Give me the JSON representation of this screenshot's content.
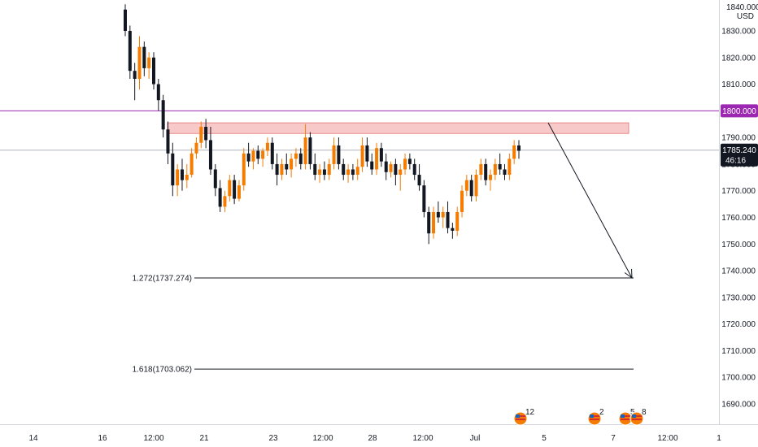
{
  "chart_data": {
    "type": "candlestick",
    "title": "",
    "currency": "USD",
    "top_tick_partial": "1840.000",
    "ylim": [
      1683,
      1842
    ],
    "y_ticks": [
      "1830.000",
      "1820.000",
      "1810.000",
      "1800.000",
      "1790.000",
      "1780.000",
      "1770.000",
      "1760.000",
      "1750.000",
      "1740.000",
      "1730.000",
      "1720.000",
      "1710.000",
      "1700.000",
      "1690.000"
    ],
    "x_ticks": [
      "14",
      "16",
      "12:00",
      "21",
      "23",
      "12:00",
      "28",
      "12:00",
      "Jul",
      "5",
      "7",
      "12:00",
      "1"
    ],
    "current_price": "1785.240",
    "countdown": "46:16",
    "horizontal_level": {
      "price": 1800.0,
      "label": "1800.000",
      "color": "#9c27b0"
    },
    "resistance_zone": {
      "from": 1791.5,
      "to": 1795.5,
      "color": "#f7c9c9"
    },
    "projection_arrow": {
      "from_price": 1795.5,
      "to_price": 1737.3,
      "color": "#131722"
    },
    "fib_levels": [
      {
        "label": "1.272(1737.274)",
        "price": 1737.274
      },
      {
        "label": "1.618(1703.062)",
        "price": 1703.062
      }
    ],
    "event_markers": [
      {
        "label": "12",
        "icon": "us-flag-icon"
      },
      {
        "label": "2",
        "icon": "us-flag-icon"
      },
      {
        "label": "5",
        "icon": "us-flag-icon"
      },
      {
        "label": "8",
        "icon": "us-flag-icon"
      }
    ],
    "up_color": "#f57c00",
    "down_color": "#131722",
    "candles": [
      [
        1838,
        1840,
        1828,
        1830
      ],
      [
        1830,
        1832,
        1812,
        1815
      ],
      [
        1815,
        1818,
        1804,
        1812
      ],
      [
        1812,
        1828,
        1808,
        1824
      ],
      [
        1824,
        1826,
        1813,
        1816
      ],
      [
        1816,
        1822,
        1812,
        1820
      ],
      [
        1820,
        1822,
        1808,
        1810
      ],
      [
        1810,
        1812,
        1800,
        1804
      ],
      [
        1804,
        1806,
        1790,
        1793
      ],
      [
        1793,
        1796,
        1780,
        1784
      ],
      [
        1784,
        1788,
        1768,
        1772
      ],
      [
        1772,
        1780,
        1768,
        1778
      ],
      [
        1778,
        1782,
        1770,
        1774
      ],
      [
        1774,
        1780,
        1771,
        1776
      ],
      [
        1776,
        1786,
        1775,
        1784
      ],
      [
        1784,
        1790,
        1782,
        1788
      ],
      [
        1788,
        1796,
        1786,
        1794
      ],
      [
        1794,
        1797,
        1786,
        1789
      ],
      [
        1789,
        1794,
        1776,
        1778
      ],
      [
        1778,
        1780,
        1768,
        1771
      ],
      [
        1771,
        1774,
        1762,
        1764
      ],
      [
        1764,
        1770,
        1762,
        1768
      ],
      [
        1768,
        1776,
        1766,
        1774
      ],
      [
        1774,
        1776,
        1765,
        1767
      ],
      [
        1767,
        1774,
        1766,
        1772
      ],
      [
        1772,
        1786,
        1770,
        1784
      ],
      [
        1784,
        1788,
        1779,
        1781
      ],
      [
        1781,
        1786,
        1778,
        1785
      ],
      [
        1785,
        1787,
        1780,
        1782
      ],
      [
        1782,
        1786,
        1779,
        1785
      ],
      [
        1785,
        1790,
        1783,
        1788
      ],
      [
        1788,
        1790,
        1778,
        1780
      ],
      [
        1780,
        1784,
        1772,
        1776
      ],
      [
        1776,
        1782,
        1774,
        1780
      ],
      [
        1780,
        1784,
        1776,
        1778
      ],
      [
        1778,
        1784,
        1775,
        1782
      ],
      [
        1782,
        1786,
        1779,
        1784
      ],
      [
        1784,
        1786,
        1778,
        1780
      ],
      [
        1780,
        1795,
        1778,
        1790
      ],
      [
        1790,
        1792,
        1778,
        1780
      ],
      [
        1780,
        1784,
        1774,
        1776
      ],
      [
        1776,
        1780,
        1773,
        1778
      ],
      [
        1778,
        1781,
        1774,
        1776
      ],
      [
        1776,
        1782,
        1774,
        1780
      ],
      [
        1780,
        1790,
        1778,
        1787
      ],
      [
        1787,
        1790,
        1778,
        1780
      ],
      [
        1780,
        1782,
        1774,
        1776
      ],
      [
        1776,
        1780,
        1773,
        1778
      ],
      [
        1778,
        1780,
        1774,
        1776
      ],
      [
        1776,
        1782,
        1774,
        1779
      ],
      [
        1779,
        1790,
        1777,
        1787
      ],
      [
        1787,
        1790,
        1779,
        1781
      ],
      [
        1781,
        1784,
        1776,
        1778
      ],
      [
        1778,
        1788,
        1776,
        1786
      ],
      [
        1786,
        1788,
        1779,
        1781
      ],
      [
        1781,
        1784,
        1774,
        1777
      ],
      [
        1777,
        1781,
        1775,
        1780
      ],
      [
        1780,
        1782,
        1772,
        1776
      ],
      [
        1776,
        1780,
        1770,
        1778
      ],
      [
        1778,
        1784,
        1776,
        1782
      ],
      [
        1782,
        1784,
        1778,
        1780
      ],
      [
        1780,
        1782,
        1774,
        1776
      ],
      [
        1776,
        1780,
        1770,
        1772
      ],
      [
        1772,
        1774,
        1760,
        1762
      ],
      [
        1762,
        1764,
        1750,
        1754
      ],
      [
        1754,
        1764,
        1752,
        1762
      ],
      [
        1762,
        1766,
        1758,
        1760
      ],
      [
        1760,
        1764,
        1756,
        1762
      ],
      [
        1762,
        1766,
        1754,
        1756
      ],
      [
        1756,
        1758,
        1752,
        1755
      ],
      [
        1755,
        1764,
        1753,
        1762
      ],
      [
        1762,
        1772,
        1760,
        1770
      ],
      [
        1770,
        1776,
        1768,
        1774
      ],
      [
        1774,
        1776,
        1766,
        1768
      ],
      [
        1768,
        1778,
        1766,
        1776
      ],
      [
        1776,
        1782,
        1774,
        1780
      ],
      [
        1780,
        1782,
        1772,
        1774
      ],
      [
        1774,
        1778,
        1770,
        1776
      ],
      [
        1776,
        1782,
        1774,
        1780
      ],
      [
        1780,
        1784,
        1776,
        1778
      ],
      [
        1778,
        1780,
        1774,
        1776
      ],
      [
        1776,
        1784,
        1774,
        1782
      ],
      [
        1782,
        1789,
        1780,
        1787
      ],
      [
        1787,
        1789,
        1782,
        1785
      ]
    ]
  }
}
